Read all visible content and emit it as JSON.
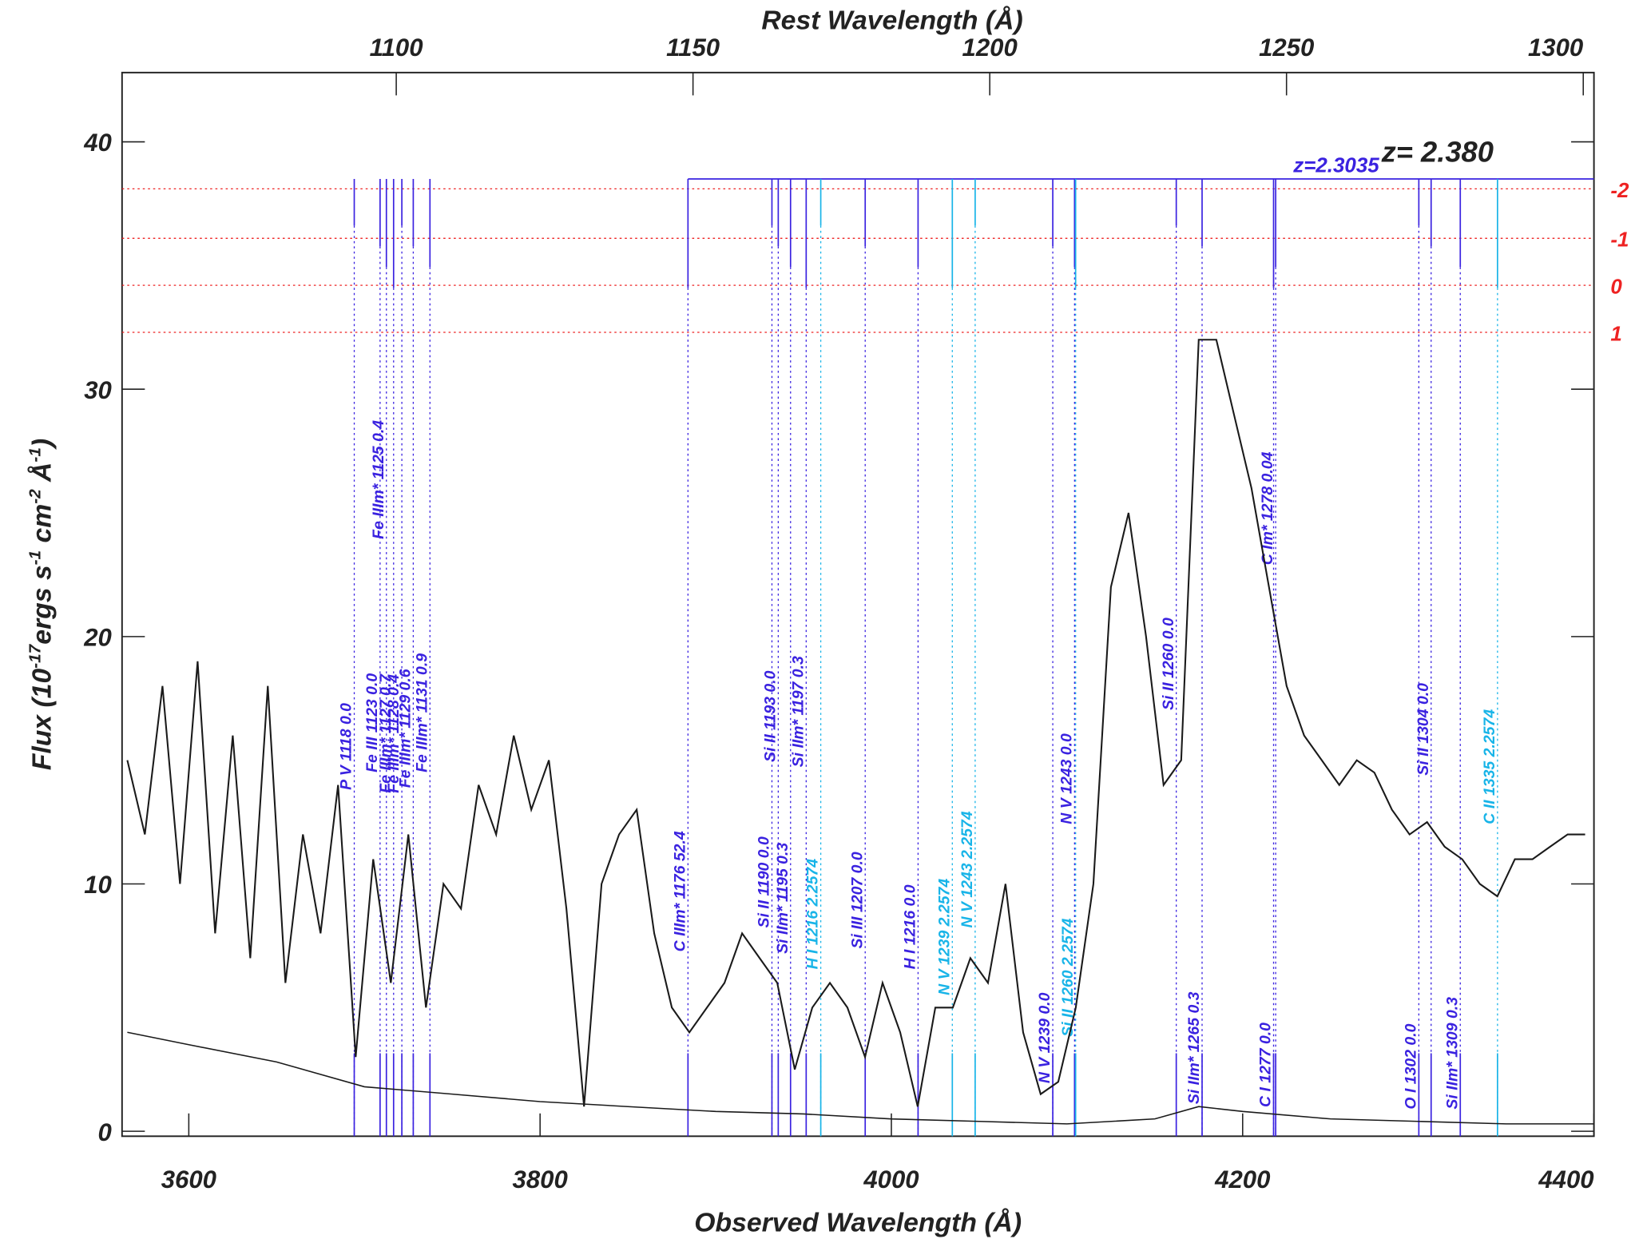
{
  "chart_data": {
    "type": "line",
    "xlabel": "Observed Wavelength (Å)",
    "x2label": "Rest Wavelength (Å)",
    "ylabel_parts": [
      "Flux (10",
      "-17",
      "ergs s",
      "-1",
      " cm",
      "-2",
      " Å",
      "-1",
      ")"
    ],
    "xlim": [
      3562,
      4400
    ],
    "xticks": [
      3600,
      3800,
      4000,
      4200,
      4400
    ],
    "x2lim": [
      1053.8,
      1301.8
    ],
    "x2ticks": [
      1100,
      1150,
      1200,
      1250,
      1300
    ],
    "ylim": [
      -0.2,
      42.8
    ],
    "yticks": [
      0,
      10,
      20,
      30,
      40
    ],
    "series": [
      {
        "color": "#1a1a1a",
        "x": [
          3565,
          3575,
          3585,
          3595,
          3605,
          3615,
          3625,
          3635,
          3645,
          3655,
          3665,
          3675,
          3685,
          3695,
          3705,
          3715,
          3725,
          3735,
          3745,
          3755,
          3765,
          3775,
          3785,
          3795,
          3805,
          3815,
          3825,
          3835,
          3845,
          3855,
          3865,
          3875,
          3885,
          3895,
          3905,
          3915,
          3925,
          3935,
          3945,
          3955,
          3965,
          3975,
          3985,
          3995,
          4005,
          4015,
          4025,
          4035,
          4045,
          4055,
          4065,
          4075,
          4085,
          4095,
          4105,
          4115,
          4125,
          4135,
          4145,
          4155,
          4165,
          4175,
          4185,
          4195,
          4205,
          4215,
          4225,
          4235,
          4245,
          4255,
          4265,
          4275,
          4285,
          4295,
          4305,
          4315,
          4325,
          4335,
          4345,
          4355,
          4365,
          4375,
          4385,
          4395
        ],
        "values": [
          15,
          12,
          18,
          10,
          19,
          8,
          16,
          7,
          18,
          6,
          12,
          8,
          14,
          3,
          11,
          6,
          12,
          5,
          10,
          9,
          14,
          12,
          16,
          13,
          15,
          9,
          1,
          10,
          12,
          13,
          8,
          5,
          4,
          5,
          6,
          8,
          7,
          6,
          2.5,
          5,
          6,
          5,
          3,
          6,
          4,
          1,
          5,
          5,
          7,
          6,
          10,
          4,
          1.5,
          2,
          5,
          10,
          22,
          25,
          20,
          14,
          15,
          32,
          32,
          29,
          26,
          22,
          18,
          16,
          15,
          14,
          15,
          14.5,
          13,
          12,
          12.5,
          11.5,
          11,
          10,
          9.5,
          11,
          11,
          11.5,
          12,
          12
        ]
      },
      {
        "color": "#1a1a1a",
        "x": [
          3565,
          3600,
          3650,
          3700,
          3750,
          3800,
          3850,
          3900,
          3950,
          4000,
          4050,
          4100,
          4150,
          4175,
          4200,
          4250,
          4300,
          4350,
          4400
        ],
        "values": [
          4,
          3.5,
          2.8,
          1.8,
          1.5,
          1.2,
          1.0,
          0.8,
          0.7,
          0.5,
          0.4,
          0.3,
          0.5,
          1.0,
          0.8,
          0.5,
          0.4,
          0.3,
          0.3
        ]
      }
    ],
    "ref_lines": {
      "color": "#ee2222",
      "ticks": [
        {
          "value": 38.1,
          "label": "-2"
        },
        {
          "value": 36.1,
          "label": "-1"
        },
        {
          "value": 34.2,
          "label": "0"
        },
        {
          "value": 32.3,
          "label": "1"
        }
      ]
    },
    "line_ids": {
      "x": [
        3694.2,
        3708.9,
        3712.5,
        3716.6,
        3721.3,
        3727.8,
        3737.3,
        3884.2,
        3932.0,
        3935.6,
        3942.6,
        3951.5,
        3959.8,
        3985.1,
        4015.2,
        4034.7,
        4047.7,
        4091.9,
        4104.3,
        4104.9,
        4162.2,
        4176.9,
        4218.8,
        4217.6,
        4300.3,
        4307.3,
        4323.9,
        4345.1
      ],
      "labels": [
        "P V 1118 0.0",
        "Fe III 1123 0.0",
        "Fe IIIm* 1125 0.4",
        "Fe IIIm* 1127 0.7",
        "Fe IIIm* 1128 0.4",
        "Fe IIIm* 1129 0.6",
        "Fe IIIm* 1131 0.9",
        "C IIIm* 1176 52.4",
        "Si II 1190 0.0",
        "Si II 1193 0.0",
        "Si IIm* 1195 0.3",
        "Si IIm* 1197 0.3",
        "H I 1216 2.2574",
        "Si III 1207 0.0",
        "H I 1216 0.0",
        "N V 1239 2.2574",
        "N V 1243 2.2574",
        "N V 1239 0.0",
        "N V 1243 0.0",
        "Si II 1260 2.2574",
        "Si II 1260 0.0",
        "Si IIm* 1265 0.3",
        "C Im* 1278 0.04",
        "C I 1277 0.0",
        "O I 1302 0.0",
        "Si II 1304 0.0",
        "Si IIm* 1309 0.3",
        "C II 1335 2.2574"
      ],
      "colors": [
        "#3a22e0",
        "#3a22e0",
        "#3a22e0",
        "#3a22e0",
        "#3a22e0",
        "#3a22e0",
        "#3a22e0",
        "#3a22e0",
        "#3a22e0",
        "#3a22e0",
        "#3a22e0",
        "#3a22e0",
        "#18b4e8",
        "#3a22e0",
        "#3a22e0",
        "#18b4e8",
        "#18b4e8",
        "#3a22e0",
        "#3a22e0",
        "#18b4e8",
        "#3a22e0",
        "#3a22e0",
        "#3a22e0",
        "#3a22e0",
        "#3a22e0",
        "#3a22e0",
        "#3a22e0",
        "#18b4e8"
      ]
    },
    "annotations": [
      {
        "text": "z= 2.380",
        "color": "#222222"
      },
      {
        "text": "z=2.3035",
        "color": "#3a22e0"
      }
    ]
  }
}
